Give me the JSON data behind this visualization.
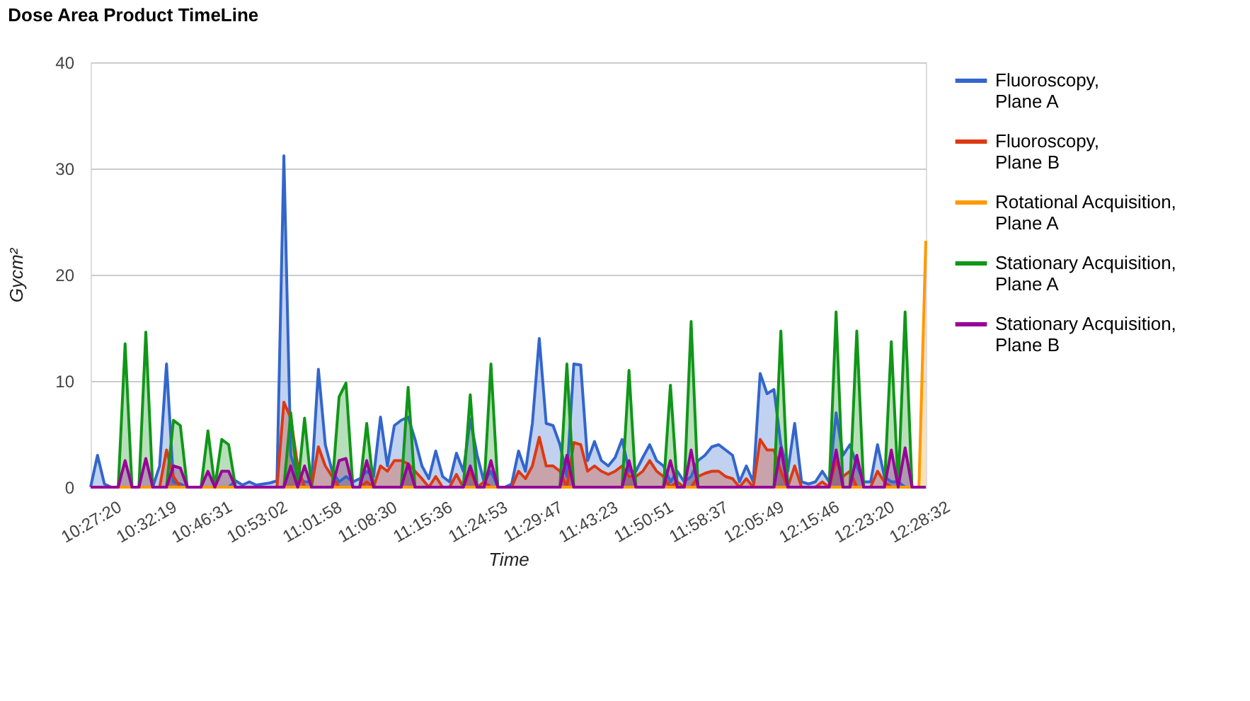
{
  "chart_data": {
    "type": "area",
    "title": "Dose Area Product TimeLine",
    "xlabel": "Time",
    "ylabel": "Gycm²",
    "categories": [
      "10:27:20",
      null,
      null,
      null,
      null,
      null,
      null,
      null,
      "10:32:19",
      null,
      null,
      null,
      null,
      null,
      null,
      null,
      "10:46:31",
      null,
      null,
      null,
      null,
      null,
      null,
      null,
      "10:53:02",
      null,
      null,
      null,
      null,
      null,
      null,
      null,
      "11:01:58",
      null,
      null,
      null,
      null,
      null,
      null,
      null,
      "11:08:30",
      null,
      null,
      null,
      null,
      null,
      null,
      null,
      "11:15:36",
      null,
      null,
      null,
      null,
      null,
      null,
      null,
      "11:24:53",
      null,
      null,
      null,
      null,
      null,
      null,
      null,
      "11:29:47",
      null,
      null,
      null,
      null,
      null,
      null,
      null,
      "11:43:23",
      null,
      null,
      null,
      null,
      null,
      null,
      null,
      "11:50:51",
      null,
      null,
      null,
      null,
      null,
      null,
      null,
      "11:58:37",
      null,
      null,
      null,
      null,
      null,
      null,
      null,
      "12:05:49",
      null,
      null,
      null,
      null,
      null,
      null,
      null,
      "12:15:46",
      null,
      null,
      null,
      null,
      null,
      null,
      null,
      "12:23:20",
      null,
      null,
      null,
      null,
      null,
      null,
      null,
      "12:28:32",
      null
    ],
    "series": [
      {
        "name": "Fluoroscopy, Plane A",
        "color": "#3366cc",
        "values": [
          0,
          3.0,
          0.3,
          0,
          0,
          0,
          0,
          0,
          0,
          0,
          2,
          11.6,
          0.5,
          0.3,
          0,
          0,
          0,
          0,
          0,
          0,
          0,
          0.6,
          0.2,
          0.5,
          0.2,
          0.3,
          0.4,
          0.6,
          31.2,
          3.0,
          1.0,
          0.5,
          0.5,
          11.1,
          4.0,
          1.5,
          0.5,
          1.0,
          0.5,
          0.8,
          1.5,
          1.0,
          6.6,
          2.0,
          5.8,
          6.3,
          6.6,
          4.5,
          2.0,
          0.8,
          3.4,
          1.0,
          0.5,
          3.2,
          1.5,
          6.4,
          3.0,
          0.5,
          1.5,
          0,
          0,
          0.3,
          3.4,
          1.5,
          6.0,
          14.0,
          6.0,
          5.8,
          4.0,
          1.0,
          11.6,
          11.5,
          2.5,
          4.3,
          2.5,
          2.0,
          2.8,
          4.5,
          1.5,
          1.5,
          2.8,
          4.0,
          2.5,
          2.0,
          0.5,
          1.5,
          0.5,
          1.0,
          2.5,
          3.0,
          3.8,
          4.0,
          3.5,
          3.0,
          0.5,
          2.0,
          0.5,
          10.7,
          8.8,
          9.2,
          4.0,
          1.5,
          6.0,
          0.5,
          0.3,
          0.5,
          1.5,
          0.5,
          7.0,
          3.0,
          4.0,
          2.0,
          0.5,
          0.5,
          4.0,
          1.0,
          0.5,
          0.5,
          0,
          0,
          0,
          0
        ]
      },
      {
        "name": "Fluoroscopy, Plane B",
        "color": "#dc3912",
        "values": [
          0,
          0,
          0,
          0,
          0,
          0,
          0,
          0,
          0,
          0,
          0,
          3.5,
          1.0,
          0,
          0,
          0,
          0,
          0,
          0,
          0,
          0,
          0,
          0,
          0,
          0,
          0,
          0,
          0,
          8.0,
          6.5,
          2.0,
          0,
          0,
          3.8,
          2.0,
          1.0,
          0,
          0,
          0,
          0,
          0.5,
          0,
          2.0,
          1.5,
          2.5,
          2.5,
          2.2,
          1.5,
          0.8,
          0,
          1.0,
          0,
          0,
          1.2,
          0,
          1.5,
          0,
          0.5,
          0,
          0,
          0,
          0,
          1.5,
          0.8,
          2.0,
          4.7,
          2.0,
          2.0,
          1.5,
          0,
          4.2,
          4.0,
          1.5,
          2.0,
          1.5,
          1.2,
          1.5,
          2.0,
          1.0,
          1.0,
          1.5,
          2.5,
          1.5,
          1.0,
          0,
          0.5,
          0,
          0,
          1.0,
          1.3,
          1.5,
          1.5,
          1.0,
          0.8,
          0,
          0.8,
          0,
          4.5,
          3.5,
          3.5,
          1.5,
          0,
          2.0,
          0,
          0,
          0,
          0.5,
          0,
          2.5,
          1.0,
          1.5,
          0,
          0,
          0,
          1.5,
          0.5,
          0,
          0,
          0,
          0,
          0,
          0
        ]
      },
      {
        "name": "Rotational Acquisition, Plane A",
        "color": "#ff9900",
        "values": [
          0,
          0,
          0,
          0,
          0,
          0,
          0,
          0,
          0,
          0,
          0,
          0,
          0,
          0,
          0,
          0,
          0,
          0,
          0,
          0,
          0,
          0,
          0,
          0,
          0,
          0,
          0,
          0,
          0,
          0,
          0,
          0,
          0,
          0,
          0,
          0,
          0,
          0,
          0,
          0,
          0,
          0,
          0,
          0,
          0,
          0,
          0,
          0,
          0,
          0,
          0,
          0,
          0,
          0,
          0,
          0,
          0,
          0,
          0,
          0,
          0,
          0,
          0,
          0,
          0,
          0,
          0,
          0,
          0,
          0,
          0,
          0,
          0,
          0,
          0,
          0,
          0,
          0,
          0,
          0,
          0,
          0,
          0,
          0,
          0,
          0,
          0,
          0,
          0,
          0,
          0,
          0,
          0,
          0,
          0,
          0,
          0,
          0,
          0,
          0,
          0,
          0,
          0,
          0,
          0,
          0,
          0,
          0,
          0,
          0,
          0,
          0,
          0,
          0,
          0,
          0,
          0,
          0,
          0,
          0,
          0,
          23.2
        ]
      },
      {
        "name": "Stationary Acquisition, Plane A",
        "color": "#109618",
        "values": [
          0,
          0,
          0,
          0,
          0,
          13.5,
          0,
          0,
          14.6,
          0,
          0,
          0,
          6.3,
          5.8,
          0,
          0,
          0,
          5.3,
          0,
          4.5,
          4.0,
          0,
          0,
          0,
          0,
          0,
          0,
          0,
          0,
          7.0,
          0,
          6.5,
          0,
          0,
          0,
          0,
          8.5,
          9.8,
          0,
          0,
          6.0,
          0,
          0,
          0,
          0,
          0,
          9.4,
          0,
          0,
          0,
          0,
          0,
          0,
          0,
          0,
          8.7,
          0,
          0,
          11.6,
          0,
          0,
          0,
          0,
          0,
          0,
          0,
          0,
          0,
          0,
          11.6,
          0,
          0,
          0,
          0,
          0,
          0,
          0,
          0,
          11.0,
          0,
          0,
          0,
          0,
          0,
          9.6,
          0,
          0,
          15.6,
          0,
          0,
          0,
          0,
          0,
          0,
          0,
          0,
          0,
          0,
          0,
          0,
          14.7,
          0,
          0,
          0,
          0,
          0,
          0,
          0,
          16.5,
          0,
          0,
          14.7,
          0,
          0,
          0,
          0,
          13.7,
          0,
          16.5,
          0,
          0,
          0
        ]
      },
      {
        "name": "Stationary Acquisition, Plane B",
        "color": "#990099",
        "values": [
          0,
          0,
          0,
          0,
          0,
          2.5,
          0,
          0,
          2.7,
          0,
          0,
          0,
          2.0,
          1.8,
          0,
          0,
          0,
          1.5,
          0,
          1.5,
          1.5,
          0,
          0,
          0,
          0,
          0,
          0,
          0,
          0,
          2.0,
          0,
          2.0,
          0,
          0,
          0,
          0,
          2.5,
          2.7,
          0,
          0,
          2.5,
          0,
          0,
          0,
          0,
          0,
          2.2,
          0,
          0,
          0,
          0,
          0,
          0,
          0,
          0,
          2.0,
          0,
          0,
          2.5,
          0,
          0,
          0,
          0,
          0,
          0,
          0,
          0,
          0,
          0,
          3.0,
          0,
          0,
          0,
          0,
          0,
          0,
          0,
          0,
          2.5,
          0,
          0,
          0,
          0,
          0,
          2.5,
          0,
          0,
          3.5,
          0,
          0,
          0,
          0,
          0,
          0,
          0,
          0,
          0,
          0,
          0,
          0,
          3.7,
          0,
          0,
          0,
          0,
          0,
          0,
          0,
          3.5,
          0,
          0,
          3.0,
          0,
          0,
          0,
          0,
          3.5,
          0,
          3.7,
          0,
          0,
          0
        ]
      }
    ],
    "ylim": [
      0,
      40
    ],
    "yticks": [
      0,
      10,
      20,
      30,
      40
    ],
    "grid": "y",
    "legend": "right"
  }
}
